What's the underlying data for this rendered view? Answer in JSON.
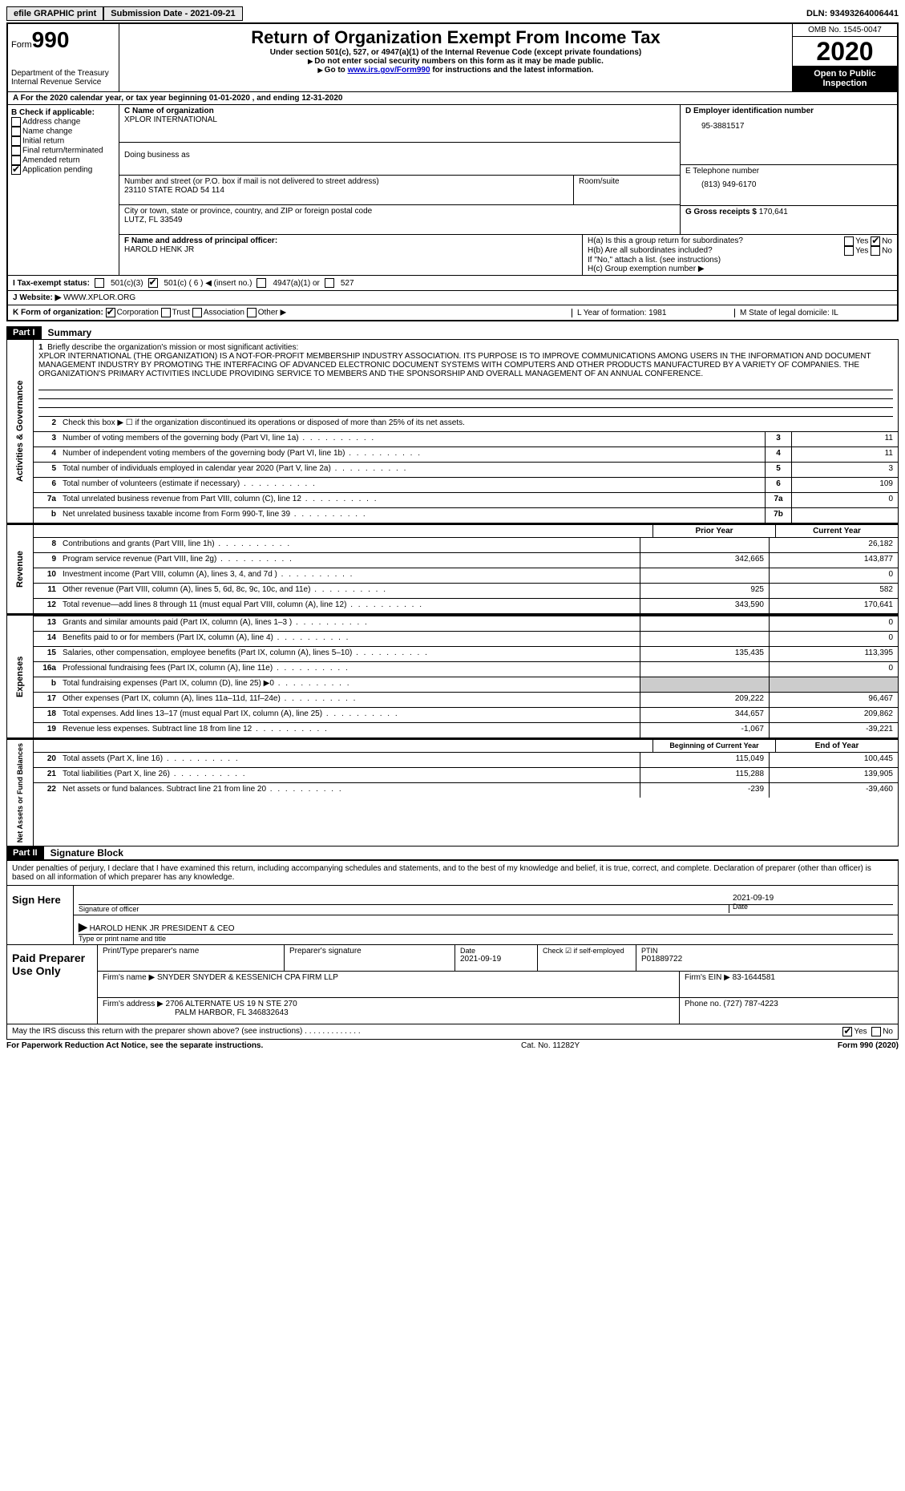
{
  "topbar": {
    "efile": "efile GRAPHIC print",
    "submission": "Submission Date - 2021-09-21",
    "dln": "DLN: 93493264006441"
  },
  "header": {
    "form_label": "Form",
    "form_num": "990",
    "dept1": "Department of the Treasury",
    "dept2": "Internal Revenue Service",
    "title": "Return of Organization Exempt From Income Tax",
    "sub": "Under section 501(c), 527, or 4947(a)(1) of the Internal Revenue Code (except private foundations)",
    "note1": "Do not enter social security numbers on this form as it may be made public.",
    "note2_pre": "Go to ",
    "note2_link": "www.irs.gov/Form990",
    "note2_post": " for instructions and the latest information.",
    "omb": "OMB No. 1545-0047",
    "year": "2020",
    "inspect1": "Open to Public",
    "inspect2": "Inspection"
  },
  "rowA": "A  For the 2020 calendar year, or tax year beginning 01-01-2020   , and ending 12-31-2020",
  "B": {
    "hdr": "B Check if applicable:",
    "opts": [
      "Address change",
      "Name change",
      "Initial return",
      "Final return/terminated",
      "Amended return",
      "Application pending"
    ]
  },
  "C": {
    "name_lbl": "C Name of organization",
    "name": "XPLOR INTERNATIONAL",
    "dba_lbl": "Doing business as",
    "dba": "",
    "addr_lbl": "Number and street (or P.O. box if mail is not delivered to street address)",
    "addr": "23110 STATE ROAD 54 114",
    "suite_lbl": "Room/suite",
    "city_lbl": "City or town, state or province, country, and ZIP or foreign postal code",
    "city": "LUTZ, FL  33549"
  },
  "D": {
    "ein_lbl": "D Employer identification number",
    "ein": "95-3881517",
    "phone_lbl": "E Telephone number",
    "phone": "(813) 949-6170",
    "gross_lbl": "G Gross receipts $",
    "gross": "170,641"
  },
  "F": {
    "lbl": "F  Name and address of principal officer:",
    "name": "HAROLD HENK JR"
  },
  "H": {
    "a": "H(a)  Is this a group return for subordinates?",
    "b": "H(b)  Are all subordinates included?",
    "b_note": "If \"No,\" attach a list. (see instructions)",
    "c": "H(c)  Group exemption number ▶",
    "yes": "Yes",
    "no": "No"
  },
  "I": {
    "lbl": "I   Tax-exempt status:",
    "o1": "501(c)(3)",
    "o2": "501(c) ( 6 ) ◀ (insert no.)",
    "o3": "4947(a)(1) or",
    "o4": "527"
  },
  "J": {
    "lbl": "J  Website: ▶",
    "val": "WWW.XPLOR.ORG"
  },
  "K": {
    "lbl": "K Form of organization:",
    "o1": "Corporation",
    "o2": "Trust",
    "o3": "Association",
    "o4": "Other ▶",
    "L": "L Year of formation: 1981",
    "M": "M State of legal domicile: IL"
  },
  "part1": {
    "hdr": "Part I",
    "title": "Summary",
    "line1_lbl": "Briefly describe the organization's mission or most significant activities:",
    "mission": "XPLOR INTERNATIONAL (THE ORGANIZATION) IS A NOT-FOR-PROFIT MEMBERSHIP INDUSTRY ASSOCIATION. ITS PURPOSE IS TO IMPROVE COMMUNICATIONS AMONG USERS IN THE INFORMATION AND DOCUMENT MANAGEMENT INDUSTRY BY PROMOTING THE INTERFACING OF ADVANCED ELECTRONIC DOCUMENT SYSTEMS WITH COMPUTERS AND OTHER PRODUCTS MANUFACTURED BY A VARIETY OF COMPANIES. THE ORGANIZATION'S PRIMARY ACTIVITIES INCLUDE PROVIDING SERVICE TO MEMBERS AND THE SPONSORSHIP AND OVERALL MANAGEMENT OF AN ANNUAL CONFERENCE.",
    "line2": "Check this box ▶ ☐  if the organization discontinued its operations or disposed of more than 25% of its net assets.",
    "rows_ag": [
      {
        "n": "3",
        "lbl": "Number of voting members of the governing body (Part VI, line 1a)",
        "box": "3",
        "val": "11"
      },
      {
        "n": "4",
        "lbl": "Number of independent voting members of the governing body (Part VI, line 1b)",
        "box": "4",
        "val": "11"
      },
      {
        "n": "5",
        "lbl": "Total number of individuals employed in calendar year 2020 (Part V, line 2a)",
        "box": "5",
        "val": "3"
      },
      {
        "n": "6",
        "lbl": "Total number of volunteers (estimate if necessary)",
        "box": "6",
        "val": "109"
      },
      {
        "n": "7a",
        "lbl": "Total unrelated business revenue from Part VIII, column (C), line 12",
        "box": "7a",
        "val": "0"
      },
      {
        "n": "b",
        "lbl": "Net unrelated business taxable income from Form 990-T, line 39",
        "box": "7b",
        "val": ""
      }
    ],
    "col_hdr": {
      "prior": "Prior Year",
      "current": "Current Year"
    },
    "rows_rev": [
      {
        "n": "8",
        "lbl": "Contributions and grants (Part VIII, line 1h)",
        "p": "",
        "c": "26,182"
      },
      {
        "n": "9",
        "lbl": "Program service revenue (Part VIII, line 2g)",
        "p": "342,665",
        "c": "143,877"
      },
      {
        "n": "10",
        "lbl": "Investment income (Part VIII, column (A), lines 3, 4, and 7d )",
        "p": "",
        "c": "0"
      },
      {
        "n": "11",
        "lbl": "Other revenue (Part VIII, column (A), lines 5, 6d, 8c, 9c, 10c, and 11e)",
        "p": "925",
        "c": "582"
      },
      {
        "n": "12",
        "lbl": "Total revenue—add lines 8 through 11 (must equal Part VIII, column (A), line 12)",
        "p": "343,590",
        "c": "170,641"
      }
    ],
    "rows_exp": [
      {
        "n": "13",
        "lbl": "Grants and similar amounts paid (Part IX, column (A), lines 1–3 )",
        "p": "",
        "c": "0"
      },
      {
        "n": "14",
        "lbl": "Benefits paid to or for members (Part IX, column (A), line 4)",
        "p": "",
        "c": "0"
      },
      {
        "n": "15",
        "lbl": "Salaries, other compensation, employee benefits (Part IX, column (A), lines 5–10)",
        "p": "135,435",
        "c": "113,395"
      },
      {
        "n": "16a",
        "lbl": "Professional fundraising fees (Part IX, column (A), line 11e)",
        "p": "",
        "c": "0"
      },
      {
        "n": "b",
        "lbl": "Total fundraising expenses (Part IX, column (D), line 25) ▶0",
        "p": "shade",
        "c": "shade"
      },
      {
        "n": "17",
        "lbl": "Other expenses (Part IX, column (A), lines 11a–11d, 11f–24e)",
        "p": "209,222",
        "c": "96,467"
      },
      {
        "n": "18",
        "lbl": "Total expenses. Add lines 13–17 (must equal Part IX, column (A), line 25)",
        "p": "344,657",
        "c": "209,862"
      },
      {
        "n": "19",
        "lbl": "Revenue less expenses. Subtract line 18 from line 12",
        "p": "-1,067",
        "c": "-39,221"
      }
    ],
    "col_hdr2": {
      "prior": "Beginning of Current Year",
      "current": "End of Year"
    },
    "rows_na": [
      {
        "n": "20",
        "lbl": "Total assets (Part X, line 16)",
        "p": "115,049",
        "c": "100,445"
      },
      {
        "n": "21",
        "lbl": "Total liabilities (Part X, line 26)",
        "p": "115,288",
        "c": "139,905"
      },
      {
        "n": "22",
        "lbl": "Net assets or fund balances. Subtract line 21 from line 20",
        "p": "-239",
        "c": "-39,460"
      }
    ],
    "vtabs": {
      "ag": "Activities & Governance",
      "rev": "Revenue",
      "exp": "Expenses",
      "na": "Net Assets or Fund Balances"
    }
  },
  "part2": {
    "hdr": "Part II",
    "title": "Signature Block",
    "declare": "Under penalties of perjury, I declare that I have examined this return, including accompanying schedules and statements, and to the best of my knowledge and belief, it is true, correct, and complete. Declaration of preparer (other than officer) is based on all information of which preparer has any knowledge.",
    "sign_here": "Sign Here",
    "sig_officer_lbl": "Signature of officer",
    "sig_date": "2021-09-19",
    "sig_date_lbl": "Date",
    "officer_name": "HAROLD HENK JR  PRESIDENT & CEO",
    "officer_name_lbl": "Type or print name and title",
    "paid": "Paid Preparer Use Only",
    "prep_name_lbl": "Print/Type preparer's name",
    "prep_sig_lbl": "Preparer's signature",
    "prep_date_lbl": "Date",
    "prep_date": "2021-09-19",
    "prep_check_lbl": "Check ☑ if self-employed",
    "ptin_lbl": "PTIN",
    "ptin": "P01889722",
    "firm_name_lbl": "Firm's name    ▶",
    "firm_name": "SNYDER SNYDER & KESSENICH CPA FIRM LLP",
    "firm_ein_lbl": "Firm's EIN ▶",
    "firm_ein": "83-1644581",
    "firm_addr_lbl": "Firm's address ▶",
    "firm_addr1": "2706 ALTERNATE US 19 N STE 270",
    "firm_addr2": "PALM HARBOR, FL  346832643",
    "firm_phone_lbl": "Phone no.",
    "firm_phone": "(727) 787-4223",
    "discuss": "May the IRS discuss this return with the preparer shown above? (see instructions)",
    "yes": "Yes",
    "no": "No"
  },
  "footer": {
    "left": "For Paperwork Reduction Act Notice, see the separate instructions.",
    "mid": "Cat. No. 11282Y",
    "right": "Form 990 (2020)"
  }
}
